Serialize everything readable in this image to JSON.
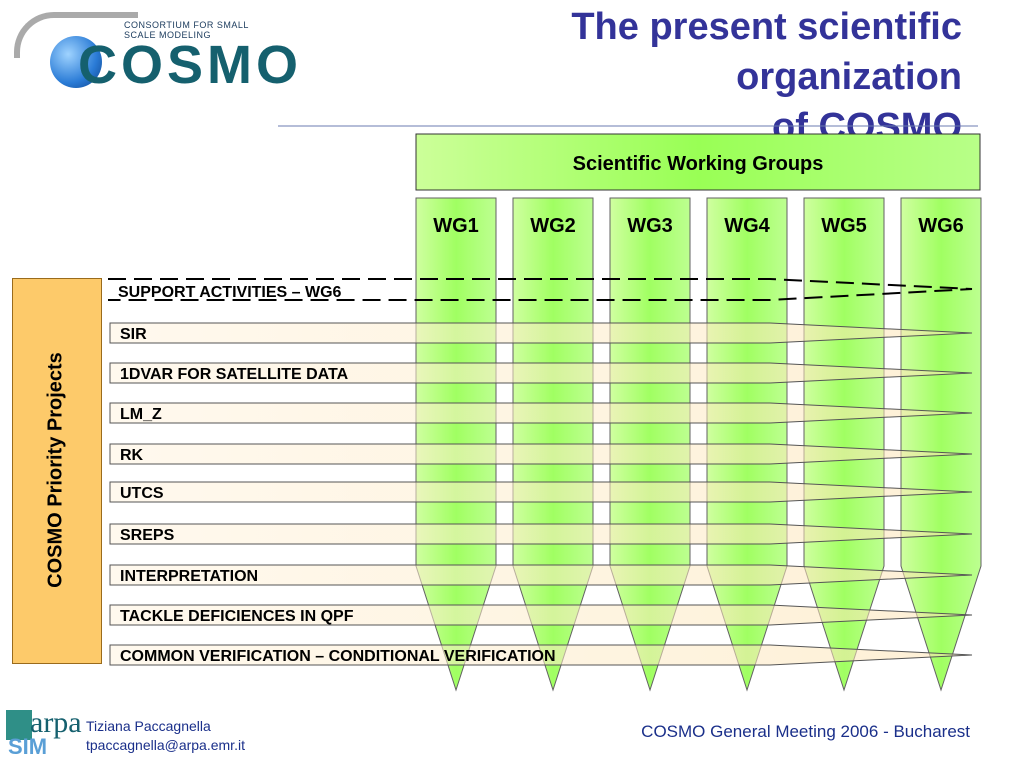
{
  "header": {
    "title_lines": [
      "The present scientific",
      "organization",
      "of COSMO"
    ]
  },
  "logo": {
    "name": "COSMO",
    "subtitle": "CONSORTIUM FOR SMALL SCALE MODELING"
  },
  "working_groups": {
    "heading": "Scientific Working Groups",
    "groups": [
      "WG1",
      "WG2",
      "WG3",
      "WG4",
      "WG5",
      "WG6"
    ]
  },
  "priority_projects": {
    "label": "COSMO Priority Projects",
    "support": "SUPPORT ACTIVITIES – WG6",
    "items": [
      "SIR",
      "1DVAR FOR SATELLITE DATA",
      "LM_Z",
      "RK",
      "UTCS",
      "SREPS",
      "INTERPRETATION",
      "TACKLE DEFICIENCES IN QPF",
      "COMMON VERIFICATION – CONDITIONAL VERIFICATION"
    ]
  },
  "colors": {
    "wg_green": "#99ff66",
    "wg_green_light": "#e8ffd6",
    "project_orange": "#fdca6a",
    "project_bar": "#fde6b8",
    "title_blue": "#333399"
  },
  "footer": {
    "author": "Tiziana Paccagnella",
    "email": "tpaccagnella@arpa.emr.it",
    "meeting": "COSMO General Meeting 2006 - Bucharest",
    "org_logo_text": "arpa",
    "org_logo_sub": "SIM"
  }
}
